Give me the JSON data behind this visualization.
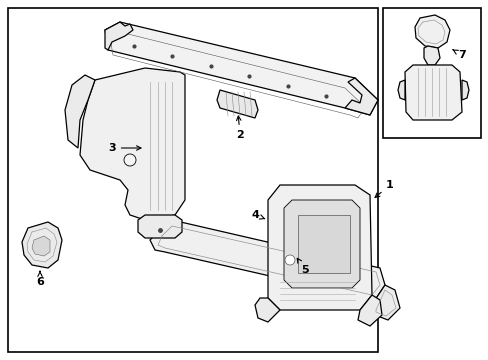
{
  "bg": "#ffffff",
  "lc": "#000000",
  "gray": "#cccccc",
  "fig_width": 4.89,
  "fig_height": 3.6,
  "dpi": 100
}
